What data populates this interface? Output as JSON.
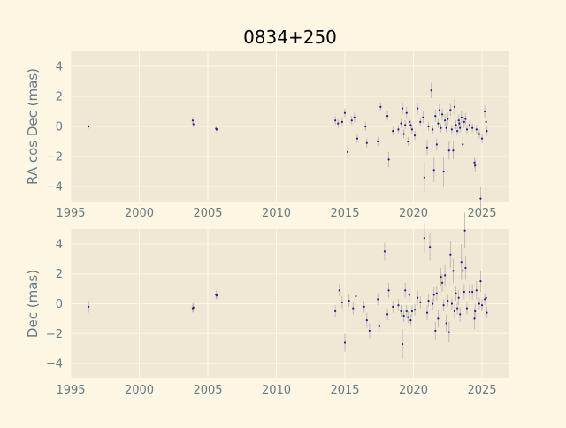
{
  "figure": {
    "title": "0834+250"
  },
  "colors": {
    "figure_bg": "#fdf6e3",
    "axes_bg": "#eee8d5",
    "grid": "#fdf6e3",
    "tick_text": "#657b83",
    "label_text": "#657b83",
    "marker": "#1f1f8c",
    "errorbar": "#b9b1a8"
  },
  "chart_data": [
    {
      "type": "scatter",
      "title": "0834+250",
      "xlabel": "",
      "ylabel": "RA cos Dec (mas)",
      "xlim": [
        1995,
        2027
      ],
      "ylim": [
        -5,
        5
      ],
      "xticks": [
        1995,
        2000,
        2005,
        2010,
        2015,
        2020,
        2025
      ],
      "yticks": [
        -4,
        -2,
        0,
        2,
        4
      ],
      "grid": true,
      "points": [
        {
          "x": 1996.3,
          "y": 0.0,
          "err": 0.15
        },
        {
          "x": 2003.9,
          "y": 0.4,
          "err": 0.2
        },
        {
          "x": 2003.95,
          "y": 0.15,
          "err": 0.2
        },
        {
          "x": 2005.6,
          "y": -0.15,
          "err": 0.15
        },
        {
          "x": 2005.65,
          "y": -0.2,
          "err": 0.1
        },
        {
          "x": 2014.3,
          "y": 0.4,
          "err": 0.3
        },
        {
          "x": 2014.5,
          "y": 0.2,
          "err": 0.3
        },
        {
          "x": 2014.8,
          "y": 0.3,
          "err": 0.3
        },
        {
          "x": 2015.0,
          "y": 0.9,
          "err": 0.3
        },
        {
          "x": 2015.2,
          "y": -1.7,
          "err": 0.4
        },
        {
          "x": 2015.5,
          "y": 0.4,
          "err": 0.3
        },
        {
          "x": 2015.7,
          "y": 0.6,
          "err": 0.3
        },
        {
          "x": 2015.9,
          "y": -0.8,
          "err": 0.3
        },
        {
          "x": 2016.5,
          "y": 0.0,
          "err": 0.3
        },
        {
          "x": 2016.6,
          "y": -1.1,
          "err": 0.3
        },
        {
          "x": 2017.4,
          "y": -1.0,
          "err": 0.3
        },
        {
          "x": 2017.6,
          "y": 1.3,
          "err": 0.3
        },
        {
          "x": 2018.1,
          "y": 0.7,
          "err": 0.3
        },
        {
          "x": 2018.2,
          "y": -2.2,
          "err": 0.5
        },
        {
          "x": 2018.5,
          "y": -0.3,
          "err": 0.3
        },
        {
          "x": 2018.9,
          "y": -0.2,
          "err": 0.3
        },
        {
          "x": 2019.1,
          "y": 0.2,
          "err": 0.3
        },
        {
          "x": 2019.2,
          "y": 1.2,
          "err": 0.4
        },
        {
          "x": 2019.3,
          "y": -0.5,
          "err": 0.3
        },
        {
          "x": 2019.4,
          "y": 0.1,
          "err": 0.3
        },
        {
          "x": 2019.5,
          "y": 0.9,
          "err": 0.4
        },
        {
          "x": 2019.6,
          "y": -1.0,
          "err": 0.3
        },
        {
          "x": 2019.7,
          "y": 0.3,
          "err": 0.3
        },
        {
          "x": 2019.8,
          "y": 0.1,
          "err": 0.3
        },
        {
          "x": 2019.9,
          "y": -0.2,
          "err": 0.3
        },
        {
          "x": 2020.1,
          "y": -0.6,
          "err": 0.3
        },
        {
          "x": 2020.3,
          "y": 1.2,
          "err": 0.4
        },
        {
          "x": 2020.5,
          "y": 0.3,
          "err": 0.3
        },
        {
          "x": 2020.7,
          "y": 0.6,
          "err": 0.4
        },
        {
          "x": 2020.8,
          "y": -3.4,
          "err": 1.0
        },
        {
          "x": 2021.0,
          "y": -1.4,
          "err": 0.5
        },
        {
          "x": 2021.1,
          "y": 0.0,
          "err": 0.3
        },
        {
          "x": 2021.3,
          "y": 2.4,
          "err": 0.5
        },
        {
          "x": 2021.4,
          "y": -0.2,
          "err": 0.3
        },
        {
          "x": 2021.5,
          "y": -2.9,
          "err": 0.8
        },
        {
          "x": 2021.6,
          "y": 0.7,
          "err": 0.4
        },
        {
          "x": 2021.7,
          "y": -1.2,
          "err": 0.4
        },
        {
          "x": 2021.8,
          "y": 0.2,
          "err": 0.3
        },
        {
          "x": 2021.9,
          "y": 1.1,
          "err": 0.4
        },
        {
          "x": 2022.0,
          "y": -0.1,
          "err": 0.3
        },
        {
          "x": 2022.1,
          "y": 0.8,
          "err": 0.4
        },
        {
          "x": 2022.2,
          "y": -3.0,
          "err": 1.0
        },
        {
          "x": 2022.3,
          "y": 0.4,
          "err": 0.4
        },
        {
          "x": 2022.4,
          "y": -0.1,
          "err": 0.3
        },
        {
          "x": 2022.5,
          "y": 0.5,
          "err": 0.4
        },
        {
          "x": 2022.6,
          "y": -1.6,
          "err": 0.6
        },
        {
          "x": 2022.7,
          "y": 1.1,
          "err": 0.4
        },
        {
          "x": 2022.8,
          "y": -0.2,
          "err": 0.3
        },
        {
          "x": 2022.9,
          "y": -1.6,
          "err": 0.6
        },
        {
          "x": 2023.0,
          "y": 1.3,
          "err": 0.5
        },
        {
          "x": 2023.1,
          "y": 0.1,
          "err": 0.3
        },
        {
          "x": 2023.2,
          "y": -0.3,
          "err": 0.3
        },
        {
          "x": 2023.3,
          "y": 0.4,
          "err": 0.4
        },
        {
          "x": 2023.35,
          "y": 0.2,
          "err": 0.3
        },
        {
          "x": 2023.4,
          "y": -0.1,
          "err": 0.3
        },
        {
          "x": 2023.5,
          "y": 0.6,
          "err": 0.4
        },
        {
          "x": 2023.6,
          "y": -1.2,
          "err": 0.6
        },
        {
          "x": 2023.7,
          "y": 0.3,
          "err": 0.4
        },
        {
          "x": 2023.8,
          "y": 0.5,
          "err": 0.4
        },
        {
          "x": 2023.9,
          "y": -0.2,
          "err": 0.3
        },
        {
          "x": 2024.1,
          "y": 0.1,
          "err": 0.3
        },
        {
          "x": 2024.3,
          "y": -0.1,
          "err": 0.3
        },
        {
          "x": 2024.45,
          "y": -2.4,
          "err": 0.4
        },
        {
          "x": 2024.5,
          "y": -2.6,
          "err": 0.4
        },
        {
          "x": 2024.6,
          "y": -0.2,
          "err": 0.3
        },
        {
          "x": 2024.8,
          "y": -0.5,
          "err": 0.3
        },
        {
          "x": 2024.9,
          "y": -4.8,
          "err": 0.8
        },
        {
          "x": 2025.0,
          "y": -0.8,
          "err": 0.3
        },
        {
          "x": 2025.2,
          "y": 1.0,
          "err": 0.4
        },
        {
          "x": 2025.3,
          "y": 0.3,
          "err": 0.3
        },
        {
          "x": 2025.35,
          "y": -0.3,
          "err": 0.3
        }
      ]
    },
    {
      "type": "scatter",
      "title": "",
      "xlabel": "",
      "ylabel": "Dec (mas)",
      "xlim": [
        1995,
        2027
      ],
      "ylim": [
        -5,
        5
      ],
      "xticks": [
        1995,
        2000,
        2005,
        2010,
        2015,
        2020,
        2025
      ],
      "yticks": [
        -4,
        -2,
        0,
        2,
        4
      ],
      "grid": true,
      "points": [
        {
          "x": 1996.3,
          "y": -0.2,
          "err": 0.4
        },
        {
          "x": 2003.9,
          "y": -0.3,
          "err": 0.3
        },
        {
          "x": 2003.95,
          "y": -0.25,
          "err": 0.3
        },
        {
          "x": 2005.6,
          "y": 0.6,
          "err": 0.3
        },
        {
          "x": 2005.65,
          "y": 0.55,
          "err": 0.2
        },
        {
          "x": 2014.3,
          "y": -0.5,
          "err": 0.4
        },
        {
          "x": 2014.6,
          "y": 0.9,
          "err": 0.4
        },
        {
          "x": 2014.8,
          "y": 0.1,
          "err": 0.4
        },
        {
          "x": 2015.0,
          "y": -2.6,
          "err": 0.6
        },
        {
          "x": 2015.3,
          "y": 0.2,
          "err": 0.4
        },
        {
          "x": 2015.6,
          "y": -0.3,
          "err": 0.4
        },
        {
          "x": 2015.8,
          "y": 0.5,
          "err": 0.4
        },
        {
          "x": 2016.4,
          "y": -0.2,
          "err": 0.4
        },
        {
          "x": 2016.6,
          "y": -1.1,
          "err": 0.5
        },
        {
          "x": 2016.8,
          "y": -1.8,
          "err": 0.5
        },
        {
          "x": 2017.4,
          "y": 0.3,
          "err": 0.4
        },
        {
          "x": 2017.5,
          "y": -1.5,
          "err": 0.5
        },
        {
          "x": 2017.9,
          "y": 3.5,
          "err": 0.6
        },
        {
          "x": 2018.1,
          "y": -0.7,
          "err": 0.4
        },
        {
          "x": 2018.2,
          "y": 0.9,
          "err": 0.5
        },
        {
          "x": 2018.5,
          "y": -0.2,
          "err": 0.4
        },
        {
          "x": 2018.9,
          "y": -0.1,
          "err": 0.4
        },
        {
          "x": 2019.1,
          "y": -0.5,
          "err": 0.4
        },
        {
          "x": 2019.2,
          "y": -2.7,
          "err": 1.0
        },
        {
          "x": 2019.3,
          "y": -0.8,
          "err": 0.4
        },
        {
          "x": 2019.4,
          "y": 0.9,
          "err": 0.5
        },
        {
          "x": 2019.5,
          "y": -0.5,
          "err": 0.4
        },
        {
          "x": 2019.6,
          "y": -0.9,
          "err": 0.4
        },
        {
          "x": 2019.7,
          "y": 0.6,
          "err": 0.4
        },
        {
          "x": 2019.8,
          "y": -1.1,
          "err": 0.4
        },
        {
          "x": 2019.9,
          "y": -0.5,
          "err": 0.4
        },
        {
          "x": 2020.1,
          "y": -0.4,
          "err": 0.4
        },
        {
          "x": 2020.3,
          "y": 0.4,
          "err": 0.5
        },
        {
          "x": 2020.5,
          "y": 0.1,
          "err": 0.4
        },
        {
          "x": 2020.8,
          "y": 4.4,
          "err": 1.0
        },
        {
          "x": 2021.0,
          "y": -0.6,
          "err": 0.5
        },
        {
          "x": 2021.1,
          "y": 0.2,
          "err": 0.4
        },
        {
          "x": 2021.2,
          "y": 3.8,
          "err": 0.9
        },
        {
          "x": 2021.4,
          "y": 0.0,
          "err": 0.4
        },
        {
          "x": 2021.5,
          "y": 0.6,
          "err": 0.5
        },
        {
          "x": 2021.6,
          "y": -1.8,
          "err": 0.6
        },
        {
          "x": 2021.7,
          "y": 0.7,
          "err": 0.5
        },
        {
          "x": 2021.8,
          "y": -1.0,
          "err": 0.6
        },
        {
          "x": 2022.0,
          "y": 1.8,
          "err": 0.6
        },
        {
          "x": 2022.1,
          "y": 1.4,
          "err": 0.6
        },
        {
          "x": 2022.2,
          "y": -0.1,
          "err": 0.4
        },
        {
          "x": 2022.3,
          "y": 1.9,
          "err": 0.7
        },
        {
          "x": 2022.4,
          "y": -1.3,
          "err": 0.6
        },
        {
          "x": 2022.5,
          "y": 0.2,
          "err": 0.4
        },
        {
          "x": 2022.6,
          "y": -1.9,
          "err": 0.7
        },
        {
          "x": 2022.7,
          "y": 3.3,
          "err": 0.9
        },
        {
          "x": 2022.8,
          "y": 0.0,
          "err": 0.4
        },
        {
          "x": 2022.9,
          "y": 2.2,
          "err": 0.8
        },
        {
          "x": 2023.0,
          "y": -0.5,
          "err": 0.5
        },
        {
          "x": 2023.1,
          "y": 0.7,
          "err": 0.5
        },
        {
          "x": 2023.2,
          "y": -0.3,
          "err": 0.4
        },
        {
          "x": 2023.3,
          "y": 0.4,
          "err": 0.5
        },
        {
          "x": 2023.4,
          "y": -0.7,
          "err": 0.5
        },
        {
          "x": 2023.5,
          "y": 2.8,
          "err": 1.2
        },
        {
          "x": 2023.6,
          "y": 2.2,
          "err": 0.9
        },
        {
          "x": 2023.7,
          "y": 0.8,
          "err": 0.5
        },
        {
          "x": 2023.75,
          "y": 4.9,
          "err": 1.2
        },
        {
          "x": 2023.8,
          "y": 2.4,
          "err": 0.8
        },
        {
          "x": 2023.9,
          "y": -0.3,
          "err": 0.4
        },
        {
          "x": 2024.1,
          "y": 0.8,
          "err": 0.5
        },
        {
          "x": 2024.3,
          "y": 0.8,
          "err": 0.5
        },
        {
          "x": 2024.45,
          "y": -1.0,
          "err": 0.7
        },
        {
          "x": 2024.5,
          "y": -0.5,
          "err": 0.5
        },
        {
          "x": 2024.6,
          "y": 0.9,
          "err": 0.6
        },
        {
          "x": 2024.8,
          "y": 0.0,
          "err": 0.4
        },
        {
          "x": 2024.9,
          "y": 1.5,
          "err": 0.7
        },
        {
          "x": 2025.0,
          "y": -0.1,
          "err": 0.4
        },
        {
          "x": 2025.2,
          "y": 0.3,
          "err": 0.4
        },
        {
          "x": 2025.3,
          "y": 0.4,
          "err": 0.4
        },
        {
          "x": 2025.35,
          "y": -0.6,
          "err": 0.4
        }
      ]
    }
  ]
}
